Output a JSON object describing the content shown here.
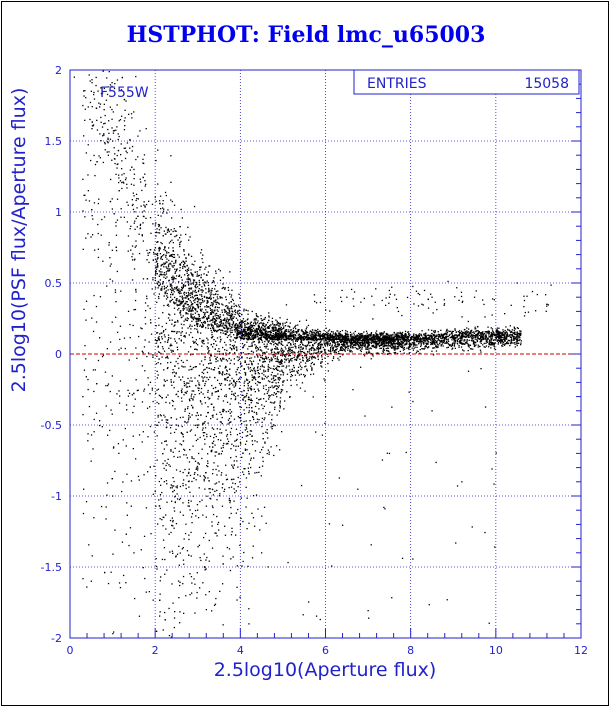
{
  "colors": {
    "axis": "#2222cc",
    "grid": "#2222cc",
    "points": "#000000",
    "reference_line": "#cc0000",
    "title": "#0000ee"
  },
  "chart_data": {
    "type": "scatter",
    "title": "HSTPHOT: Field lmc_u65003",
    "xlabel": "2.5log10(Aperture flux)",
    "ylabel": "2.5log10(PSF flux/Aperture flux)",
    "xlim": [
      0,
      12
    ],
    "ylim": [
      -2,
      2
    ],
    "xticks": [
      "0",
      "2",
      "4",
      "6",
      "8",
      "10",
      "12"
    ],
    "yticks": [
      "-2",
      "-1.5",
      "-1",
      "-0.5",
      "0",
      "0.5",
      "1",
      "1.5",
      "2"
    ],
    "grid": true,
    "reference_line_y": 0,
    "filter_label": "F555W",
    "stats": {
      "label": "ENTRIES",
      "value": "15058"
    },
    "entries": 15058,
    "distribution": {
      "description": "dense tongue of points converging toward y≈0.1 at high aperture flux, widening below x≈4",
      "center_curve": [
        [
          0.5,
          1.6
        ],
        [
          1.0,
          1.3
        ],
        [
          1.5,
          0.9
        ],
        [
          2.0,
          0.5
        ],
        [
          2.5,
          0.3
        ],
        [
          3.0,
          0.2
        ],
        [
          4.0,
          0.1
        ],
        [
          5.0,
          0.1
        ],
        [
          6.0,
          0.1
        ],
        [
          8.0,
          0.1
        ],
        [
          10.0,
          0.13
        ],
        [
          10.6,
          0.13
        ]
      ],
      "sample_points": [
        [
          0.1,
          1.95
        ],
        [
          0.3,
          1.75
        ],
        [
          0.5,
          1.85
        ],
        [
          0.7,
          1.55
        ],
        [
          0.9,
          1.4
        ],
        [
          1.1,
          1.6
        ],
        [
          1.3,
          1.45
        ],
        [
          1.5,
          1.3
        ],
        [
          1.7,
          1.0
        ],
        [
          1.9,
          0.85
        ],
        [
          2.2,
          0.7
        ],
        [
          2.5,
          0.55
        ],
        [
          2.8,
          0.45
        ],
        [
          3.0,
          0.35
        ],
        [
          3.5,
          0.25
        ],
        [
          4.0,
          0.2
        ],
        [
          4.5,
          0.15
        ],
        [
          5.0,
          0.12
        ],
        [
          6.0,
          0.1
        ],
        [
          7.0,
          0.1
        ],
        [
          8.0,
          0.1
        ],
        [
          9.0,
          0.12
        ],
        [
          10.0,
          0.13
        ],
        [
          10.5,
          0.14
        ],
        [
          6.5,
          0.4
        ],
        [
          7.5,
          0.4
        ],
        [
          8.5,
          0.4
        ],
        [
          9.5,
          0.4
        ],
        [
          10.5,
          0.5
        ],
        [
          11.2,
          0.35
        ],
        [
          2.5,
          -0.5
        ],
        [
          3.0,
          -0.6
        ],
        [
          3.5,
          -0.9
        ],
        [
          4.0,
          -1.2
        ],
        [
          4.5,
          -1.4
        ],
        [
          3.2,
          -1.8
        ],
        [
          4.2,
          -1.9
        ],
        [
          1.0,
          -1.0
        ],
        [
          1.5,
          -1.4
        ],
        [
          0.5,
          -1.6
        ],
        [
          0.3,
          -0.3
        ],
        [
          5.0,
          -0.2
        ],
        [
          6.0,
          -0.3
        ],
        [
          7.5,
          -0.7
        ],
        [
          8.5,
          -0.4
        ],
        [
          9.2,
          -0.9
        ]
      ]
    }
  }
}
